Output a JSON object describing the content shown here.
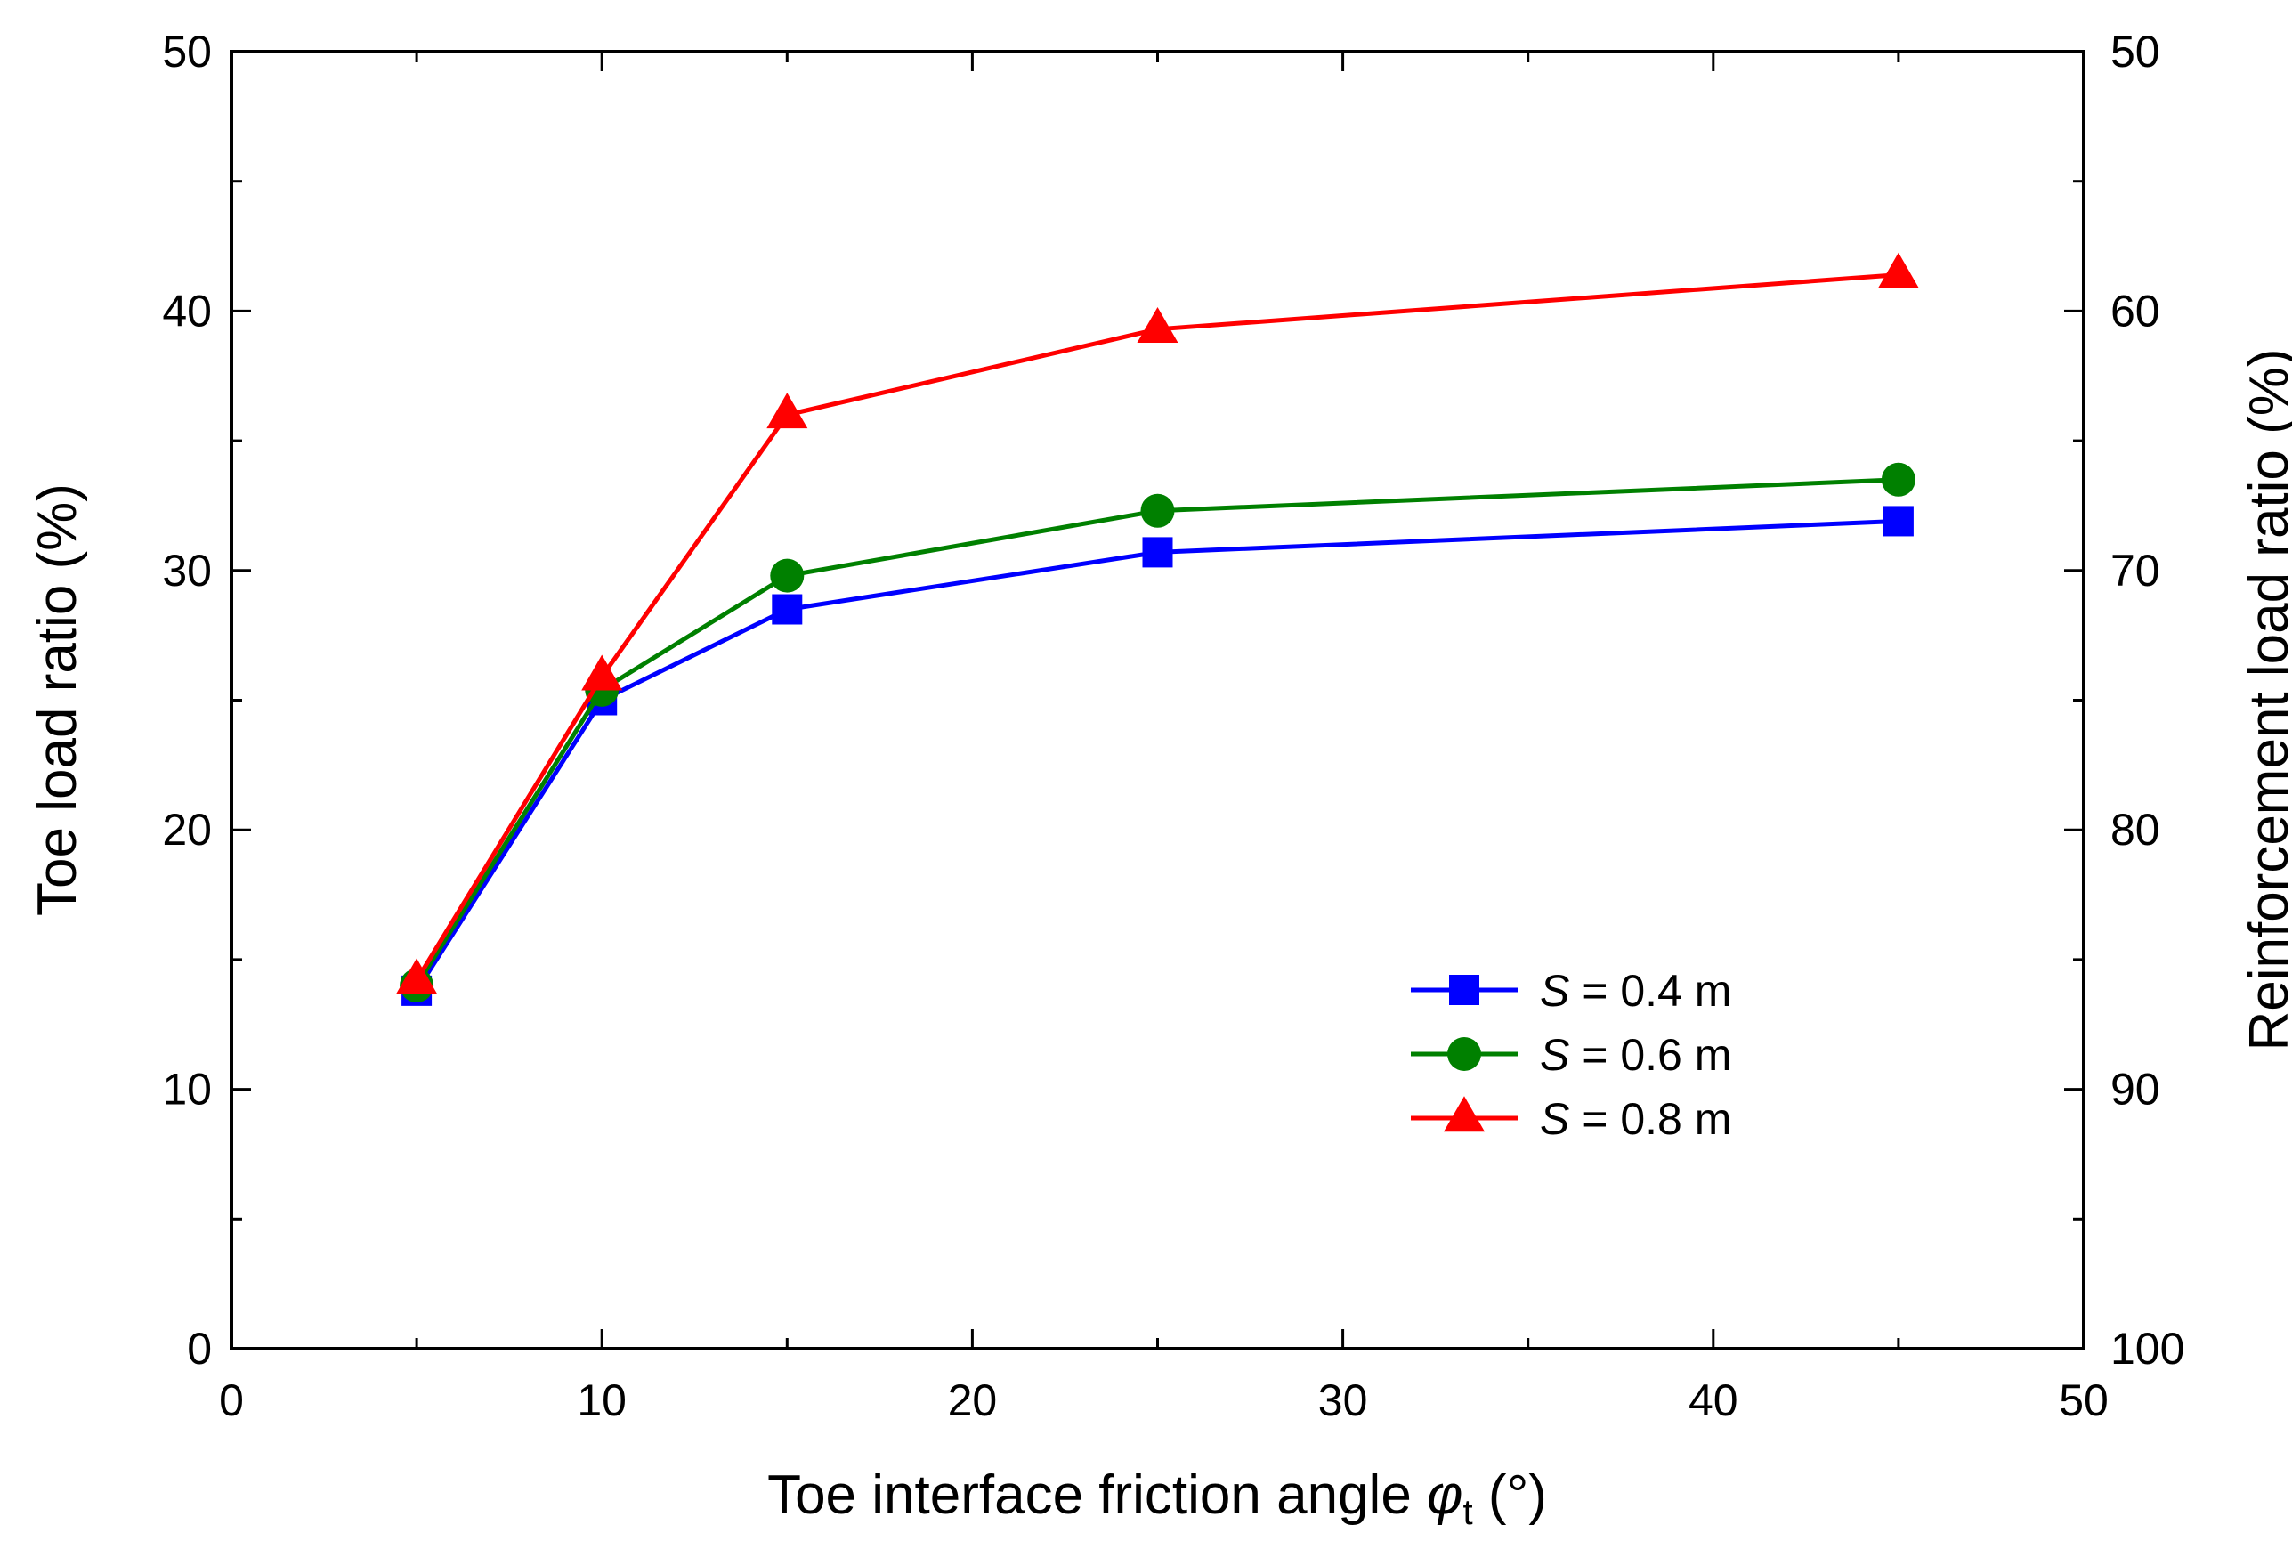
{
  "chart_data": {
    "type": "line",
    "title": "",
    "xlabel": {
      "text": "Toe interface friction angle ",
      "symbol": "φ",
      "subscript": "t",
      "unit": " (°)"
    },
    "ylabel": "Toe load ratio (%)",
    "y2label": "Reinforcement load ratio (%)",
    "xlim": [
      0,
      50
    ],
    "ylim": [
      0,
      50
    ],
    "y2lim": [
      100,
      50
    ],
    "xticks": [
      0,
      10,
      20,
      30,
      40,
      50
    ],
    "yticks": [
      0,
      10,
      20,
      30,
      40,
      50
    ],
    "y2ticks": [
      100,
      90,
      80,
      70,
      60,
      50
    ],
    "x": [
      5,
      10,
      15,
      25,
      45
    ],
    "series": [
      {
        "name": "S = 0.4 m",
        "label_var": "S",
        "label_rest": " = 0.4 m",
        "color": "#0000FF",
        "marker": "square",
        "values": [
          13.8,
          25.0,
          28.5,
          30.7,
          31.9
        ]
      },
      {
        "name": "S = 0.6 m",
        "label_var": "S",
        "label_rest": " = 0.6 m",
        "color": "#008000",
        "marker": "circle",
        "values": [
          14.0,
          25.4,
          29.8,
          32.3,
          33.5
        ]
      },
      {
        "name": "S = 0.8 m",
        "label_var": "S",
        "label_rest": " = 0.8 m",
        "color": "#FF0000",
        "marker": "triangle",
        "values": [
          14.2,
          25.9,
          36.0,
          39.3,
          41.4
        ]
      }
    ],
    "legend_position": "bottom-right",
    "grid": false
  }
}
